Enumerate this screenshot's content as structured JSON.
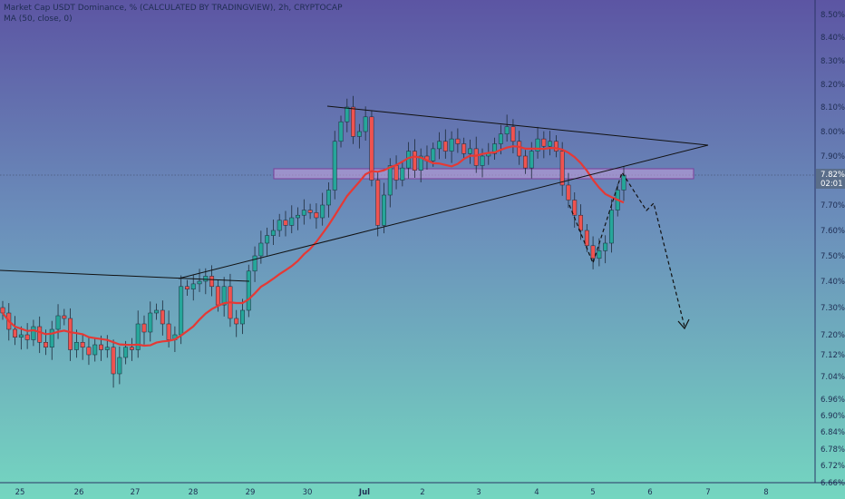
{
  "header": {
    "title": "Market Cap USDT Dominance, % (CALCULATED BY TRADINGVIEW), 2h, CRYPTOCAP",
    "indicator": "MA (50, close, 0)"
  },
  "price_label": {
    "value": "7.82%",
    "countdown": "02:01"
  },
  "colors": {
    "bg_top": "#5c55a3",
    "bg_bottom": "#74d6c0",
    "bull": "#26a69a",
    "bear": "#ef5350",
    "ma": "#e53935",
    "zone_fill": "#c9a0dc",
    "zone_stroke": "#7b3f9a",
    "lines": "#111111",
    "price_tag": "#5a6e8a"
  },
  "chart_data": {
    "type": "candlestick",
    "x_ticks": [
      "25",
      "26",
      "27",
      "28",
      "29",
      "30",
      "Jul",
      "2",
      "3",
      "4",
      "5",
      "6",
      "7",
      "8"
    ],
    "y_ticks": [
      "8.50%",
      "8.40%",
      "8.30%",
      "8.20%",
      "8.10%",
      "8.00%",
      "7.90%",
      "7.82%",
      "7.70%",
      "7.60%",
      "7.50%",
      "7.40%",
      "7.30%",
      "7.20%",
      "7.12%",
      "7.04%",
      "6.96%",
      "6.90%",
      "6.84%",
      "6.78%",
      "6.72%",
      "6.66%"
    ],
    "ylim": [
      6.66,
      8.52
    ],
    "x_range": [
      "25",
      "8"
    ],
    "grid": false,
    "last_price": 7.82,
    "ma_period": 50,
    "resistance_zone": [
      7.81,
      7.84
    ]
  }
}
